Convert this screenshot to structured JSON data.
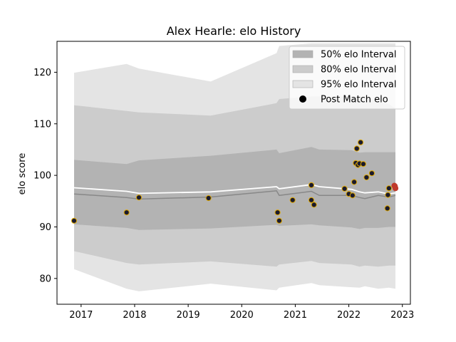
{
  "chart_data": {
    "type": "area",
    "title": "Alex Hearle: elo History",
    "xlabel": "",
    "ylabel": "elo score",
    "xlim": [
      2016.55,
      2023.15
    ],
    "ylim": [
      75,
      126
    ],
    "x_ticks": [
      2017,
      2018,
      2019,
      2020,
      2021,
      2022,
      2023
    ],
    "x_tick_labels": [
      "2017",
      "2018",
      "2019",
      "2020",
      "2021",
      "2022",
      "2023"
    ],
    "y_ticks": [
      80,
      90,
      100,
      110,
      120
    ],
    "y_tick_labels": [
      "80",
      "90",
      "100",
      "110",
      "120"
    ],
    "grid": false,
    "legend_position": "top-right",
    "legend": [
      {
        "label": "50% elo Interval",
        "kind": "patch",
        "color": "#b3b3b3"
      },
      {
        "label": "80% elo Interval",
        "kind": "patch",
        "color": "#cccccc"
      },
      {
        "label": "95% elo Interval",
        "kind": "patch",
        "color": "#e4e4e4"
      },
      {
        "label": "Post Match elo",
        "kind": "marker",
        "color": "#000000"
      }
    ],
    "bands": [
      {
        "name": "95% elo Interval",
        "color": "#e4e4e4",
        "x": [
          2016.87,
          2017.85,
          2018.08,
          2019.42,
          2020.65,
          2020.7,
          2021.3,
          2021.45,
          2022.05,
          2022.2,
          2022.3,
          2022.55,
          2022.75,
          2022.87
        ],
        "upper": [
          119.9,
          121.6,
          120.7,
          118.2,
          123.7,
          125.1,
          125.6,
          125.6,
          125.6,
          125.6,
          125.6,
          125.6,
          125.6,
          125.6
        ],
        "lower": [
          81.8,
          78.0,
          77.5,
          79.0,
          77.7,
          78.2,
          79.1,
          78.7,
          78.3,
          78.2,
          78.5,
          78.0,
          78.2,
          78.0
        ]
      },
      {
        "name": "80% elo Interval",
        "color": "#cccccc",
        "x": [
          2016.87,
          2017.85,
          2018.08,
          2019.42,
          2020.65,
          2020.7,
          2021.3,
          2021.45,
          2022.05,
          2022.2,
          2022.3,
          2022.55,
          2022.75,
          2022.87
        ],
        "upper": [
          113.6,
          112.5,
          112.2,
          111.6,
          114.0,
          114.8,
          115.3,
          115.3,
          115.3,
          115.3,
          115.3,
          114.3,
          113.8,
          113.0
        ],
        "lower": [
          85.3,
          83.0,
          82.7,
          83.3,
          82.3,
          82.7,
          83.4,
          83.0,
          82.7,
          82.3,
          82.5,
          82.3,
          82.5,
          82.5
        ]
      },
      {
        "name": "50% elo Interval",
        "color": "#b3b3b3",
        "x": [
          2016.87,
          2017.85,
          2018.08,
          2019.42,
          2020.65,
          2020.7,
          2021.3,
          2021.45,
          2022.05,
          2022.2,
          2022.3,
          2022.55,
          2022.75,
          2022.87
        ],
        "upper": [
          103.0,
          102.2,
          102.9,
          103.8,
          105.0,
          104.3,
          105.5,
          105.0,
          104.9,
          104.4,
          104.5,
          104.5,
          104.5,
          104.5
        ],
        "lower": [
          90.5,
          89.8,
          89.4,
          89.7,
          90.4,
          90.2,
          90.5,
          90.3,
          89.9,
          89.6,
          89.8,
          89.8,
          90.0,
          90.0
        ]
      }
    ],
    "median_line": {
      "color": "#888888",
      "x": [
        2016.87,
        2017.85,
        2018.08,
        2019.42,
        2020.65,
        2020.7,
        2021.3,
        2021.45,
        2022.05,
        2022.2,
        2022.3,
        2022.55,
        2022.75,
        2022.87
      ],
      "y": [
        96.4,
        95.7,
        95.4,
        95.8,
        97.0,
        96.1,
        96.9,
        96.1,
        96.1,
        95.7,
        95.5,
        96.1,
        95.8,
        96.1
      ]
    },
    "mean_line": {
      "color": "#ffffff",
      "x": [
        2016.87,
        2017.85,
        2018.08,
        2019.42,
        2020.65,
        2020.7,
        2021.3,
        2021.45,
        2022.05,
        2022.2,
        2022.3,
        2022.55,
        2022.75,
        2022.87
      ],
      "y": [
        97.6,
        96.9,
        96.5,
        96.8,
        97.8,
        97.4,
        98.2,
        97.8,
        97.3,
        96.8,
        96.6,
        96.8,
        96.4,
        96.6
      ]
    },
    "series": [
      {
        "name": "Post Match elo",
        "marker_color": "#1a1a2e",
        "edge_color": "#e0a800",
        "x": [
          2016.87,
          2017.85,
          2018.08,
          2019.38,
          2020.67,
          2020.7,
          2020.95,
          2021.3,
          2021.3,
          2021.35,
          2021.92,
          2022.0,
          2022.07,
          2022.1,
          2022.13,
          2022.15,
          2022.17,
          2022.2,
          2022.22,
          2022.27,
          2022.33,
          2022.43,
          2022.72,
          2022.73,
          2022.75
        ],
        "y": [
          91.2,
          92.8,
          95.7,
          95.6,
          92.8,
          91.2,
          95.2,
          98.1,
          95.2,
          94.3,
          97.4,
          96.4,
          96.1,
          98.7,
          102.4,
          105.2,
          102.0,
          102.3,
          106.4,
          102.2,
          99.6,
          100.4,
          93.6,
          96.2,
          97.5
        ]
      },
      {
        "name": "",
        "marker_color": "#c0392b",
        "edge_color": "#c0392b",
        "x": [
          2022.85,
          2022.86,
          2022.87
        ],
        "y": [
          98.0,
          97.9,
          97.5
        ]
      }
    ]
  }
}
